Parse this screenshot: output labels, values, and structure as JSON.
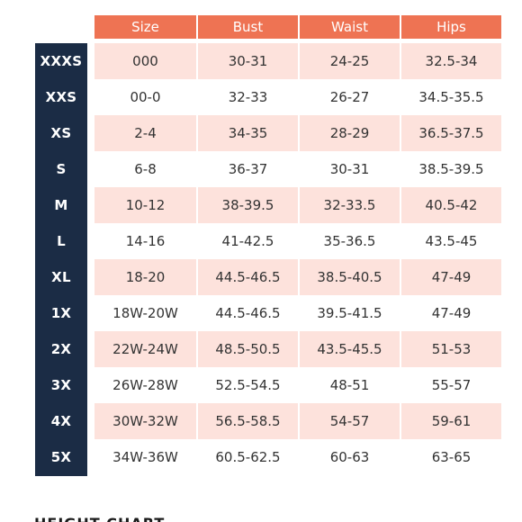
{
  "headers": [
    "Size",
    "Bust",
    "Waist",
    "Hips"
  ],
  "colors": {
    "header_bg": "#ee7353",
    "label_bg": "#1b2c45",
    "shaded_row": "#fde2dc"
  },
  "rows": [
    {
      "label": "XXXS",
      "size": "000",
      "bust": "30-31",
      "waist": "24-25",
      "hips": "32.5-34"
    },
    {
      "label": "XXS",
      "size": "00-0",
      "bust": "32-33",
      "waist": "26-27",
      "hips": "34.5-35.5"
    },
    {
      "label": "XS",
      "size": "2-4",
      "bust": "34-35",
      "waist": "28-29",
      "hips": "36.5-37.5"
    },
    {
      "label": "S",
      "size": "6-8",
      "bust": "36-37",
      "waist": "30-31",
      "hips": "38.5-39.5"
    },
    {
      "label": "M",
      "size": "10-12",
      "bust": "38-39.5",
      "waist": "32-33.5",
      "hips": "40.5-42"
    },
    {
      "label": "L",
      "size": "14-16",
      "bust": "41-42.5",
      "waist": "35-36.5",
      "hips": "43.5-45"
    },
    {
      "label": "XL",
      "size": "18-20",
      "bust": "44.5-46.5",
      "waist": "38.5-40.5",
      "hips": "47-49"
    },
    {
      "label": "1X",
      "size": "18W-20W",
      "bust": "44.5-46.5",
      "waist": "39.5-41.5",
      "hips": "47-49"
    },
    {
      "label": "2X",
      "size": "22W-24W",
      "bust": "48.5-50.5",
      "waist": "43.5-45.5",
      "hips": "51-53"
    },
    {
      "label": "3X",
      "size": "26W-28W",
      "bust": "52.5-54.5",
      "waist": "48-51",
      "hips": "55-57"
    },
    {
      "label": "4X",
      "size": "30W-32W",
      "bust": "56.5-58.5",
      "waist": "54-57",
      "hips": "59-61"
    },
    {
      "label": "5X",
      "size": "34W-36W",
      "bust": "60.5-62.5",
      "waist": "60-63",
      "hips": "63-65"
    }
  ],
  "footer_title": "HEIGHT CHART"
}
